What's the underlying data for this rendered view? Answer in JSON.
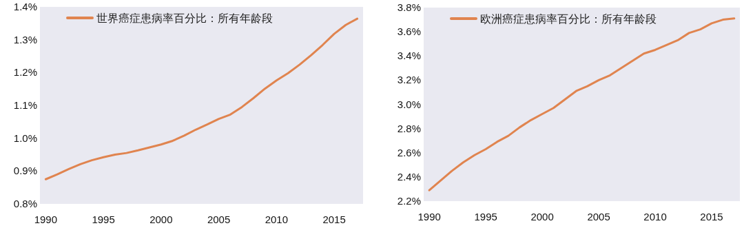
{
  "chart_data": [
    {
      "type": "line",
      "x": [
        1990,
        1991,
        1992,
        1993,
        1994,
        1995,
        1996,
        1997,
        1998,
        1999,
        2000,
        2001,
        2002,
        2003,
        2004,
        2005,
        2006,
        2007,
        2008,
        2009,
        2010,
        2011,
        2012,
        2013,
        2014,
        2015,
        2016,
        2017
      ],
      "series": [
        {
          "name": "世界癌症患病率百分比：所有年龄段",
          "color": "#e0844f",
          "values": [
            0.875,
            0.89,
            0.906,
            0.921,
            0.933,
            0.942,
            0.95,
            0.955,
            0.963,
            0.972,
            0.981,
            0.992,
            1.008,
            1.026,
            1.042,
            1.059,
            1.072,
            1.095,
            1.122,
            1.151,
            1.176,
            1.198,
            1.224,
            1.253,
            1.284,
            1.318,
            1.345,
            1.364
          ]
        }
      ],
      "xlim": [
        1989.5,
        2017.5
      ],
      "xticks": [
        1990,
        1995,
        2000,
        2005,
        2010,
        2015
      ],
      "ylim": [
        0.8,
        1.4
      ],
      "yticks": [
        {
          "value": 0.8,
          "label": "0.8%"
        },
        {
          "value": 0.9,
          "label": "0.9%"
        },
        {
          "value": 1.0,
          "label": "1.0%"
        },
        {
          "value": 1.1,
          "label": "1.1%"
        },
        {
          "value": 1.2,
          "label": "1.2%"
        },
        {
          "value": 1.3,
          "label": "1.3%"
        },
        {
          "value": 1.4,
          "label": "1.4%"
        }
      ],
      "legend": "top",
      "grid": false
    },
    {
      "type": "line",
      "x": [
        1990,
        1991,
        1992,
        1993,
        1994,
        1995,
        1996,
        1997,
        1998,
        1999,
        2000,
        2001,
        2002,
        2003,
        2004,
        2005,
        2006,
        2007,
        2008,
        2009,
        2010,
        2011,
        2012,
        2013,
        2014,
        2015,
        2016,
        2017
      ],
      "series": [
        {
          "name": "欧洲癌症患病率百分比：所有年龄段",
          "color": "#e0844f",
          "values": [
            2.29,
            2.37,
            2.45,
            2.52,
            2.58,
            2.63,
            2.69,
            2.74,
            2.81,
            2.87,
            2.92,
            2.97,
            3.04,
            3.11,
            3.15,
            3.2,
            3.24,
            3.3,
            3.36,
            3.42,
            3.45,
            3.49,
            3.53,
            3.59,
            3.62,
            3.67,
            3.7,
            3.71
          ]
        }
      ],
      "xlim": [
        1989.5,
        2017.5
      ],
      "xticks": [
        1990,
        1995,
        2000,
        2005,
        2010,
        2015
      ],
      "ylim": [
        2.2,
        3.8
      ],
      "yticks": [
        {
          "value": 2.2,
          "label": "2.2%"
        },
        {
          "value": 2.4,
          "label": "2.4%"
        },
        {
          "value": 2.6,
          "label": "2.6%"
        },
        {
          "value": 2.8,
          "label": "2.8%"
        },
        {
          "value": 3.0,
          "label": "3.0%"
        },
        {
          "value": 3.2,
          "label": "3.2%"
        },
        {
          "value": 3.4,
          "label": "3.4%"
        },
        {
          "value": 3.6,
          "label": "3.6%"
        },
        {
          "value": 3.8,
          "label": "3.8%"
        }
      ],
      "legend": "top",
      "grid": false
    }
  ]
}
